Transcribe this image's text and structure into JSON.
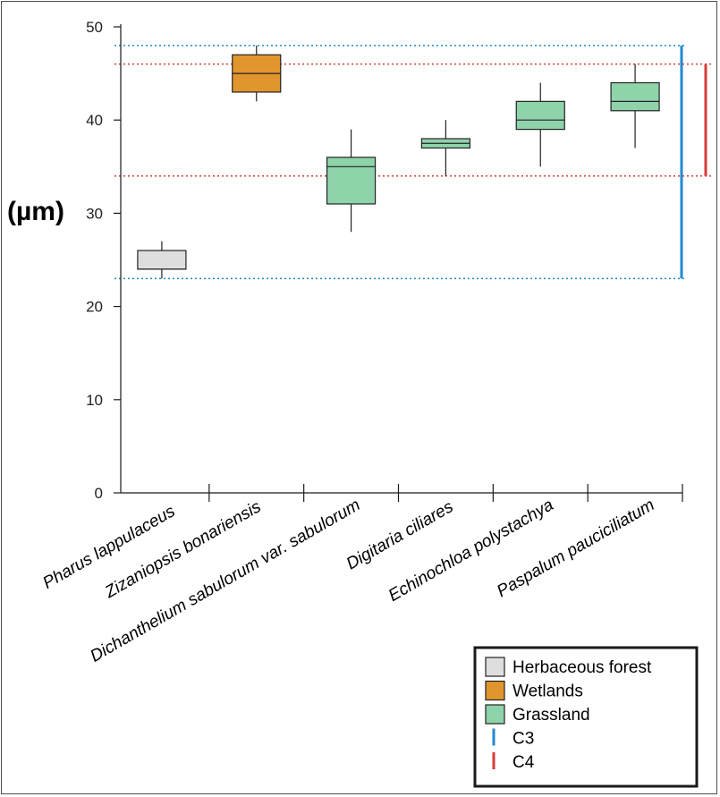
{
  "chart_data": {
    "type": "box",
    "ylabel": "(µm)",
    "xlabel": "",
    "title": "",
    "ylim": [
      0,
      50
    ],
    "yticks": [
      0,
      10,
      20,
      30,
      40,
      50
    ],
    "categories": [
      "Pharus lappulaceus",
      "Zizaniopsis bonariensis",
      "Dichanthelium sabulorum var. sabulorum",
      "Digitaria ciliares",
      "Echinochloa polystachya",
      "Paspalum pauciciliatum"
    ],
    "boxes": [
      {
        "category": "Pharus lappulaceus",
        "group": "Herbaceous forest",
        "min": 23,
        "q1": 24,
        "median": 24,
        "q3": 26,
        "max": 27
      },
      {
        "category": "Zizaniopsis bonariensis",
        "group": "Wetlands",
        "min": 42,
        "q1": 43,
        "median": 45,
        "q3": 47,
        "max": 48
      },
      {
        "category": "Dichanthelium sabulorum var. sabulorum",
        "group": "Grassland",
        "min": 28,
        "q1": 31,
        "median": 35,
        "q3": 36,
        "max": 39
      },
      {
        "category": "Digitaria ciliares",
        "group": "Grassland",
        "min": 34,
        "q1": 37,
        "median": 37.5,
        "q3": 38,
        "max": 40
      },
      {
        "category": "Echinochloa polystachya",
        "group": "Grassland",
        "min": 35,
        "q1": 39,
        "median": 40,
        "q3": 42,
        "max": 44
      },
      {
        "category": "Paspalum pauciciliatum",
        "group": "Grassland",
        "min": 37,
        "q1": 41,
        "median": 42,
        "q3": 44,
        "max": 46
      }
    ],
    "ranges": [
      {
        "name": "C3",
        "low": 23,
        "high": 48,
        "color": "#1f8ad0"
      },
      {
        "name": "C4",
        "low": 34,
        "high": 46,
        "color": "#d93a3a"
      }
    ],
    "groups": [
      {
        "name": "Herbaceous forest",
        "color": "#dedede"
      },
      {
        "name": "Wetlands",
        "color": "#e0952e"
      },
      {
        "name": "Grassland",
        "color": "#8fd3ab"
      }
    ],
    "legend_position": "bottom-right",
    "grid": false
  },
  "legend": {
    "items": [
      {
        "label": "Herbaceous forest",
        "kind": "swatch",
        "color": "#dedede"
      },
      {
        "label": "Wetlands",
        "kind": "swatch",
        "color": "#e0952e"
      },
      {
        "label": "Grassland",
        "kind": "swatch",
        "color": "#8fd3ab"
      },
      {
        "label": "C3",
        "kind": "line",
        "color": "#1f8ad0"
      },
      {
        "label": "C4",
        "kind": "line",
        "color": "#d93a3a"
      }
    ]
  }
}
